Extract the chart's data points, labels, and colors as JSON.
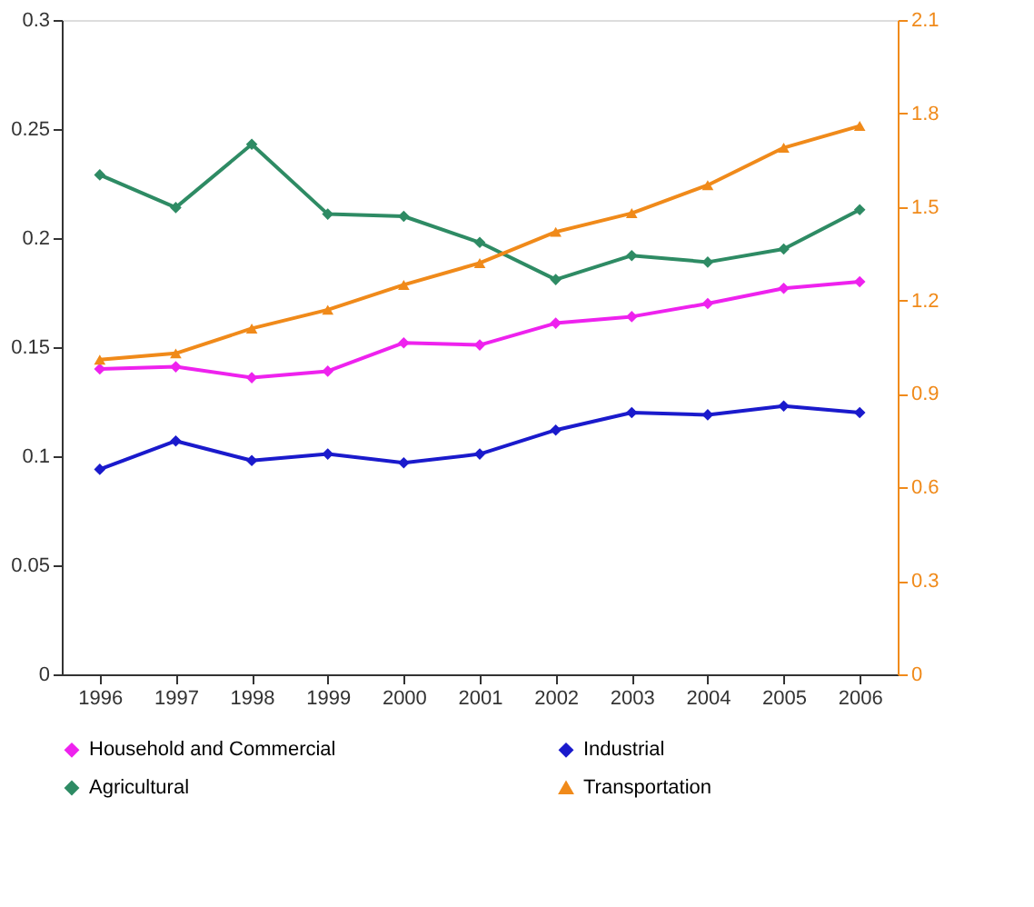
{
  "chart_data": {
    "type": "line",
    "categories": [
      "1996",
      "1997",
      "1998",
      "1999",
      "2000",
      "2001",
      "2002",
      "2003",
      "2004",
      "2005",
      "2006"
    ],
    "ylim": [
      0,
      0.3
    ],
    "yticks": [
      0,
      0.05,
      0.1,
      0.15,
      0.2,
      0.25,
      0.3
    ],
    "y2lim": [
      0,
      2.1
    ],
    "y2ticks": [
      0,
      0.3,
      0.6,
      0.9,
      1.2,
      1.5,
      1.8,
      2.1
    ],
    "grid": false,
    "legend": "bottom",
    "marker": "diamond",
    "line_style": "solid",
    "series": [
      {
        "name": "Household and Commercial",
        "color": "#ee22ee",
        "values": [
          0.14,
          0.141,
          0.136,
          0.139,
          0.152,
          0.151,
          0.161,
          0.164,
          0.17,
          0.177,
          0.18
        ]
      },
      {
        "name": "Industrial",
        "color": "#1a1acc",
        "values": [
          0.094,
          0.107,
          0.098,
          0.101,
          0.097,
          0.101,
          0.112,
          0.12,
          0.119,
          0.123,
          0.12
        ]
      },
      {
        "name": "Agricultural",
        "color": "#2e8b64",
        "values": [
          0.229,
          0.214,
          0.243,
          0.211,
          0.21,
          0.198,
          0.181,
          0.192,
          0.189,
          0.195,
          0.213
        ]
      },
      {
        "name": "Transportation",
        "color": "#f08a1a",
        "axis": "y2",
        "marker": "triangle",
        "values": [
          1.01,
          1.03,
          1.11,
          1.17,
          1.25,
          1.32,
          1.42,
          1.48,
          1.57,
          1.69,
          1.76
        ]
      }
    ]
  }
}
